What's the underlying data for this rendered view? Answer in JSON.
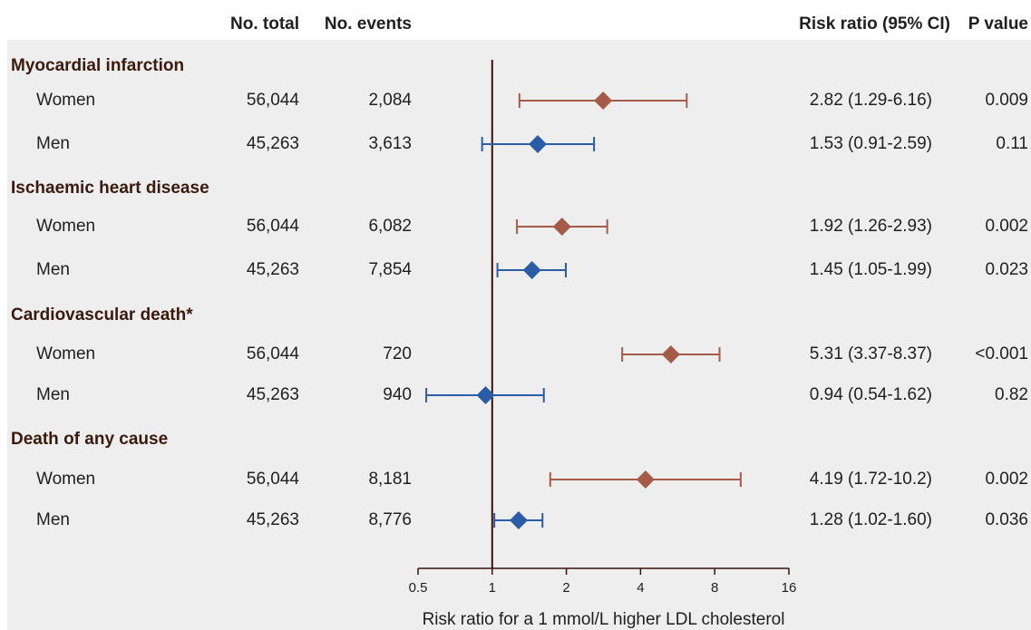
{
  "headers": {
    "no_total": "No. total",
    "no_events": "No. events",
    "risk_ratio": "Risk ratio (95% CI)",
    "p_value": "P value"
  },
  "groups": [
    {
      "title": "Myocardial infarction",
      "rows": [
        {
          "sex": "Women",
          "total": "56,044",
          "events": "2,084",
          "rr_text": "2.82 (1.29-6.16)",
          "p": "0.009",
          "rr": 2.82,
          "lo": 1.29,
          "hi": 6.16
        },
        {
          "sex": "Men",
          "total": "45,263",
          "events": "3,613",
          "rr_text": "1.53 (0.91-2.59)",
          "p": "0.11",
          "rr": 1.53,
          "lo": 0.91,
          "hi": 2.59
        }
      ]
    },
    {
      "title": "Ischaemic heart disease",
      "rows": [
        {
          "sex": "Women",
          "total": "56,044",
          "events": "6,082",
          "rr_text": "1.92 (1.26-2.93)",
          "p": "0.002",
          "rr": 1.92,
          "lo": 1.26,
          "hi": 2.93
        },
        {
          "sex": "Men",
          "total": "45,263",
          "events": "7,854",
          "rr_text": "1.45 (1.05-1.99)",
          "p": "0.023",
          "rr": 1.45,
          "lo": 1.05,
          "hi": 1.99
        }
      ]
    },
    {
      "title": "Cardiovascular death*",
      "rows": [
        {
          "sex": "Women",
          "total": "56,044",
          "events": "720",
          "rr_text": "5.31 (3.37-8.37)",
          "p": "<0.001",
          "rr": 5.31,
          "lo": 3.37,
          "hi": 8.37
        },
        {
          "sex": "Men",
          "total": "45,263",
          "events": "940",
          "rr_text": "0.94 (0.54-1.62)",
          "p": "0.82",
          "rr": 0.94,
          "lo": 0.54,
          "hi": 1.62
        }
      ]
    },
    {
      "title": "Death of any cause",
      "rows": [
        {
          "sex": "Women",
          "total": "56,044",
          "events": "8,181",
          "rr_text": "4.19 (1.72-10.2)",
          "p": "0.002",
          "rr": 4.19,
          "lo": 1.72,
          "hi": 10.2
        },
        {
          "sex": "Men",
          "total": "45,263",
          "events": "8,776",
          "rr_text": "1.28 (1.02-1.60)",
          "p": "0.036",
          "rr": 1.28,
          "lo": 1.02,
          "hi": 1.6
        }
      ]
    }
  ],
  "chart_data": {
    "type": "forest",
    "scale": "log2",
    "xlim": [
      0.5,
      16
    ],
    "xticks": [
      0.5,
      1,
      2,
      4,
      8,
      16
    ],
    "xtick_labels": [
      "0.5",
      "1",
      "2",
      "4",
      "8",
      "16"
    ],
    "reference_line": 1,
    "xlabel": "Risk ratio for a 1 mmol/L higher LDL cholesterol",
    "series": [
      {
        "name": "Women",
        "color": "#a55b48",
        "points": [
          {
            "outcome": "Myocardial infarction",
            "rr": 2.82,
            "lo": 1.29,
            "hi": 6.16
          },
          {
            "outcome": "Ischaemic heart disease",
            "rr": 1.92,
            "lo": 1.26,
            "hi": 2.93
          },
          {
            "outcome": "Cardiovascular death*",
            "rr": 5.31,
            "lo": 3.37,
            "hi": 8.37
          },
          {
            "outcome": "Death of any cause",
            "rr": 4.19,
            "lo": 1.72,
            "hi": 10.2
          }
        ]
      },
      {
        "name": "Men",
        "color": "#2a5ca8",
        "points": [
          {
            "outcome": "Myocardial infarction",
            "rr": 1.53,
            "lo": 0.91,
            "hi": 2.59
          },
          {
            "outcome": "Ischaemic heart disease",
            "rr": 1.45,
            "lo": 1.05,
            "hi": 1.99
          },
          {
            "outcome": "Cardiovascular death*",
            "rr": 0.94,
            "lo": 0.54,
            "hi": 1.62
          },
          {
            "outcome": "Death of any cause",
            "rr": 1.28,
            "lo": 1.02,
            "hi": 1.6
          }
        ]
      }
    ]
  },
  "colors": {
    "women": "#a55b48",
    "men": "#2a5ca8",
    "axis": "#3a1208",
    "panel": "#eeeeee"
  }
}
